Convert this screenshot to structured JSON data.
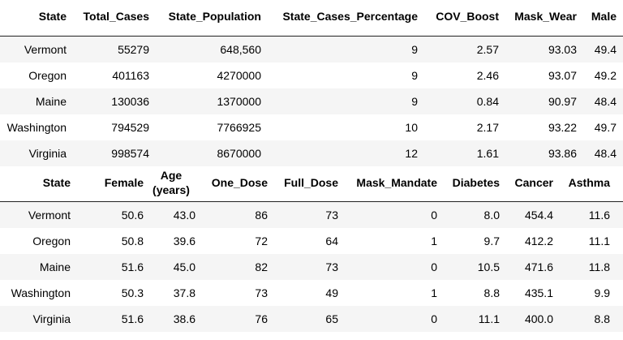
{
  "tables": [
    {
      "columns": [
        "State",
        "Total_Cases",
        "State_Population",
        "State_Cases_Percentage",
        "COV_Boost",
        "Mask_Wear",
        "Male"
      ],
      "rows": [
        [
          "Vermont",
          "55279",
          "648,560",
          "9",
          "2.57",
          "93.03",
          "49.4"
        ],
        [
          "Oregon",
          "401163",
          "4270000",
          "9",
          "2.46",
          "93.07",
          "49.2"
        ],
        [
          "Maine",
          "130036",
          "1370000",
          "9",
          "0.84",
          "90.97",
          "48.4"
        ],
        [
          "Washington",
          "794529",
          "7766925",
          "10",
          "2.17",
          "93.22",
          "49.7"
        ],
        [
          "Virginia",
          "998574",
          "8670000",
          "12",
          "1.61",
          "93.86",
          "48.4"
        ]
      ]
    },
    {
      "columns": [
        "State",
        "Female",
        "Age (years)",
        "One_Dose",
        "Full_Dose",
        "Mask_Mandate",
        "Diabetes",
        "Cancer",
        "Asthma"
      ],
      "rows": [
        [
          "Vermont",
          "50.6",
          "43.0",
          "86",
          "73",
          "0",
          "8.0",
          "454.4",
          "11.6"
        ],
        [
          "Oregon",
          "50.8",
          "39.6",
          "72",
          "64",
          "1",
          "9.7",
          "412.2",
          "11.1"
        ],
        [
          "Maine",
          "51.6",
          "45.0",
          "82",
          "73",
          "0",
          "10.5",
          "471.6",
          "11.8"
        ],
        [
          "Washington",
          "50.3",
          "37.8",
          "73",
          "49",
          "1",
          "8.8",
          "435.1",
          "9.9"
        ],
        [
          "Virginia",
          "51.6",
          "38.6",
          "76",
          "65",
          "0",
          "11.1",
          "400.0",
          "8.8"
        ]
      ]
    }
  ]
}
